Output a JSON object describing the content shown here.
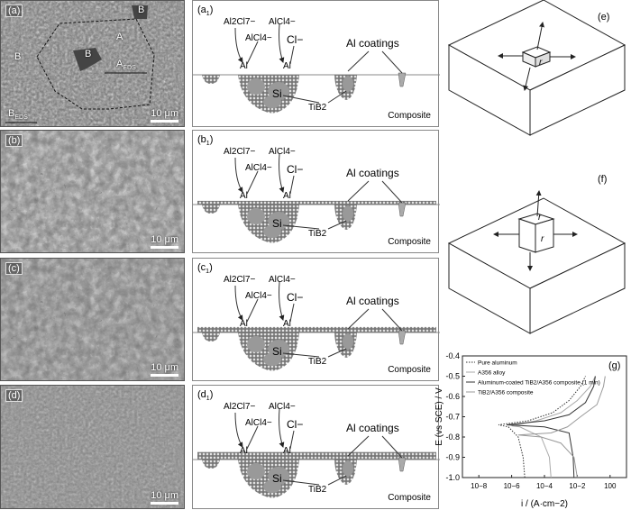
{
  "sem_panels": [
    {
      "tag": "(a)",
      "scale": "10 μm",
      "labels": [
        "A",
        "B",
        "B",
        "B",
        "A",
        "B"
      ],
      "subs": [
        "EDS",
        "EDS"
      ]
    },
    {
      "tag": "(b)",
      "scale": "10 μm"
    },
    {
      "tag": "(c)",
      "scale": "10 μm"
    },
    {
      "tag": "(d)",
      "scale": "10 μm"
    }
  ],
  "schematics": [
    {
      "tag": "(a",
      "tagsub": "1"
    },
    {
      "tag": "(b",
      "tagsub": "1"
    },
    {
      "tag": "(c",
      "tagsub": "1"
    },
    {
      "tag": "(d",
      "tagsub": "1"
    }
  ],
  "schematic_text": {
    "al2cl7": "Al2Cl7−",
    "alcl4": "AlCl4−",
    "cl": "Cl−",
    "al": "Al",
    "si": "Si",
    "tib2": "TiB2",
    "coatings": "Al coatings",
    "composite": "Composite"
  },
  "cube_panels": [
    {
      "tag": "(e)",
      "r": "r"
    },
    {
      "tag": "(f)",
      "r": "r"
    }
  ],
  "chart_data": {
    "type": "line",
    "tag": "(g)",
    "xlabel": "i / (A·cm−2)",
    "ylabel": "E (vs SCE) / V",
    "x_scale": "log",
    "xlim": [
      1e-09,
      10.0
    ],
    "ylim": [
      -1.0,
      -0.4
    ],
    "xticks": [
      "10−8",
      "10−6",
      "10−4",
      "10−2",
      "100"
    ],
    "yticks": [
      "-0.4",
      "-0.5",
      "-0.6",
      "-0.7",
      "-0.8",
      "-0.9",
      "-1.0"
    ],
    "legend_position": "top-left",
    "series": [
      {
        "name": "Pure aluminum",
        "style": "dotted",
        "color": "#333",
        "points": [
          [
            -5.2,
            -1.0
          ],
          [
            -5.3,
            -0.9
          ],
          [
            -5.6,
            -0.8
          ],
          [
            -6.2,
            -0.75
          ],
          [
            -6.8,
            -0.74
          ],
          [
            -5,
            -0.72
          ],
          [
            -3.5,
            -0.68
          ],
          [
            -2.5,
            -0.62
          ],
          [
            -1.8,
            -0.55
          ],
          [
            -1.5,
            -0.5
          ]
        ]
      },
      {
        "name": "A356 alloy",
        "style": "solid",
        "color": "#aaa",
        "points": [
          [
            -3.6,
            -1.0
          ],
          [
            -3.7,
            -0.9
          ],
          [
            -4.2,
            -0.8
          ],
          [
            -5.5,
            -0.75
          ],
          [
            -6,
            -0.745
          ],
          [
            -4.5,
            -0.72
          ],
          [
            -3,
            -0.68
          ],
          [
            -2,
            -0.62
          ],
          [
            -1.2,
            -0.55
          ],
          [
            -0.9,
            -0.5
          ]
        ]
      },
      {
        "name": "Aluminum-coated TiB2/A356 composite (1 min)",
        "style": "solid",
        "color": "#333",
        "points": [
          [
            -2.2,
            -1.0
          ],
          [
            -2.25,
            -0.9
          ],
          [
            -2.5,
            -0.78
          ],
          [
            -4,
            -0.75
          ],
          [
            -6.3,
            -0.74
          ],
          [
            -4,
            -0.72
          ],
          [
            -2.5,
            -0.69
          ],
          [
            -1.5,
            -0.63
          ],
          [
            -1,
            -0.55
          ],
          [
            -0.9,
            -0.5
          ]
        ]
      },
      {
        "name": "TiB2/A356 composite",
        "style": "solid",
        "color": "#999",
        "points": [
          [
            -2.0,
            -1.0
          ],
          [
            -2.2,
            -0.9
          ],
          [
            -3,
            -0.83
          ],
          [
            -4.2,
            -0.8
          ],
          [
            -5.6,
            -0.79
          ],
          [
            -3.6,
            -0.78
          ],
          [
            -2.6,
            -0.75
          ],
          [
            -1.8,
            -0.7
          ],
          [
            -0.8,
            -0.64
          ],
          [
            -0.4,
            -0.55
          ],
          [
            -0.3,
            -0.5
          ]
        ]
      }
    ]
  }
}
